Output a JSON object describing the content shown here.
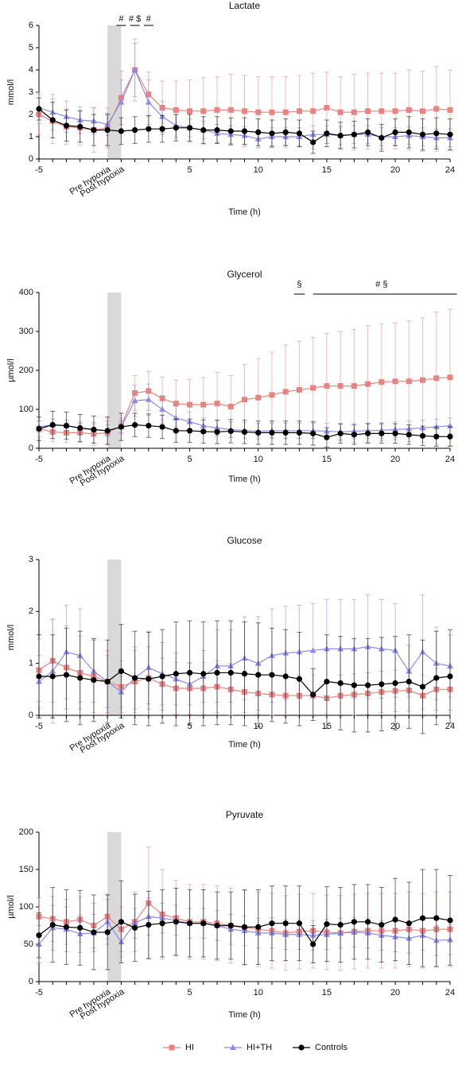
{
  "chart_data": [
    {
      "type": "line",
      "title": "Lactate",
      "x_label": "Time (h)",
      "y_label": "mmol/l",
      "categories": [
        "-5",
        null,
        null,
        null,
        null,
        "Pre hypoxia",
        "Post hypoxia",
        null,
        null,
        null,
        null,
        "5",
        null,
        null,
        null,
        null,
        "10",
        null,
        null,
        null,
        null,
        "15",
        null,
        null,
        null,
        null,
        "20",
        null,
        null,
        null,
        "24"
      ],
      "ylim": [
        0,
        6
      ],
      "yticks": [
        0,
        1,
        2,
        3,
        4,
        5,
        6
      ],
      "annotations": [
        "#",
        "# $",
        "#"
      ],
      "series": [
        {
          "name": "HI",
          "color": "#e8837f",
          "marker": "square",
          "values": [
            2.0,
            1.7,
            1.45,
            1.4,
            1.3,
            1.4,
            2.75,
            4.0,
            2.9,
            2.3,
            2.2,
            2.15,
            2.15,
            2.2,
            2.2,
            2.15,
            2.1,
            2.1,
            2.1,
            2.15,
            2.15,
            2.3,
            2.1,
            2.1,
            2.15,
            2.15,
            2.15,
            2.2,
            2.15,
            2.25,
            2.2
          ],
          "errors": [
            0.9,
            1.0,
            0.8,
            0.8,
            1.0,
            0.9,
            1.2,
            1.2,
            1.0,
            1.2,
            1.3,
            1.4,
            1.5,
            1.5,
            1.6,
            1.6,
            1.6,
            1.6,
            1.6,
            1.6,
            1.7,
            1.6,
            1.6,
            1.7,
            1.7,
            1.7,
            1.7,
            1.8,
            1.8,
            1.9,
            1.8
          ]
        },
        {
          "name": "HI+TH",
          "color": "#8c8ce8",
          "marker": "triangle",
          "values": [
            2.3,
            2.1,
            1.9,
            1.75,
            1.7,
            1.55,
            2.55,
            4.0,
            2.55,
            1.9,
            1.5,
            1.4,
            1.3,
            1.15,
            1.1,
            1.05,
            0.9,
            1.0,
            1.0,
            1.0,
            1.1,
            1.1,
            1.05,
            1.1,
            1.1,
            1.0,
            1.0,
            1.05,
            1.0,
            0.95,
            0.95
          ],
          "errors": [
            0.7,
            0.8,
            0.7,
            0.6,
            0.6,
            0.5,
            1.0,
            1.4,
            1.0,
            0.7,
            0.5,
            0.4,
            0.4,
            0.4,
            0.4,
            0.4,
            0.4,
            0.4,
            0.4,
            0.4,
            0.4,
            0.4,
            0.4,
            0.4,
            0.4,
            0.4,
            0.4,
            0.4,
            0.4,
            0.4,
            0.4
          ]
        },
        {
          "name": "Controls",
          "color": "#000000",
          "marker": "circle",
          "values": [
            2.25,
            1.75,
            1.5,
            1.45,
            1.3,
            1.3,
            1.25,
            1.3,
            1.35,
            1.35,
            1.4,
            1.4,
            1.3,
            1.3,
            1.25,
            1.25,
            1.2,
            1.15,
            1.2,
            1.15,
            0.75,
            1.15,
            1.05,
            1.1,
            1.2,
            0.95,
            1.2,
            1.2,
            1.1,
            1.15,
            1.1
          ],
          "errors": [
            0.5,
            0.8,
            0.7,
            0.7,
            0.7,
            0.7,
            0.6,
            0.6,
            0.6,
            0.6,
            0.6,
            0.6,
            0.6,
            0.6,
            0.6,
            0.6,
            0.6,
            0.6,
            0.6,
            0.6,
            0.5,
            0.6,
            0.6,
            0.6,
            0.6,
            0.6,
            0.6,
            0.7,
            0.7,
            0.7,
            0.7
          ]
        }
      ]
    },
    {
      "type": "line",
      "title": "Glycerol",
      "x_label": "Time (h)",
      "y_label": "µmol/l",
      "categories": [
        "-5",
        null,
        null,
        null,
        null,
        "Pre hypoxia",
        "Post hypoxia",
        null,
        null,
        null,
        null,
        "5",
        null,
        null,
        null,
        null,
        "10",
        null,
        null,
        null,
        null,
        "15",
        null,
        null,
        null,
        null,
        "20",
        null,
        null,
        null,
        "24"
      ],
      "ylim": [
        0,
        400
      ],
      "yticks": [
        0,
        100,
        200,
        300,
        400
      ],
      "annotations": [
        "§",
        "# §"
      ],
      "series": [
        {
          "name": "HI",
          "color": "#e8837f",
          "marker": "square",
          "values": [
            50,
            42,
            40,
            40,
            37,
            40,
            57,
            142,
            147,
            128,
            115,
            112,
            112,
            115,
            107,
            125,
            130,
            137,
            145,
            150,
            155,
            160,
            160,
            160,
            165,
            170,
            172,
            172,
            175,
            180,
            182
          ],
          "errors": [
            20,
            25,
            25,
            25,
            30,
            30,
            20,
            45,
            50,
            55,
            60,
            65,
            70,
            80,
            80,
            90,
            100,
            110,
            120,
            125,
            130,
            135,
            140,
            145,
            150,
            150,
            150,
            155,
            160,
            170,
            175
          ]
        },
        {
          "name": "HI+TH",
          "color": "#8c8ce8",
          "marker": "triangle",
          "values": [
            55,
            60,
            58,
            52,
            48,
            45,
            55,
            122,
            125,
            100,
            78,
            68,
            58,
            52,
            48,
            46,
            44,
            45,
            45,
            45,
            45,
            44,
            42,
            44,
            45,
            46,
            48,
            50,
            52,
            55,
            58
          ],
          "errors": [
            15,
            15,
            15,
            15,
            15,
            15,
            15,
            40,
            40,
            35,
            30,
            25,
            20,
            20,
            20,
            20,
            20,
            20,
            20,
            20,
            20,
            20,
            20,
            20,
            20,
            20,
            20,
            20,
            20,
            20,
            20
          ]
        },
        {
          "name": "Controls",
          "color": "#000000",
          "marker": "circle",
          "values": [
            50,
            60,
            58,
            52,
            48,
            45,
            55,
            60,
            58,
            55,
            45,
            45,
            43,
            42,
            44,
            42,
            40,
            40,
            40,
            40,
            38,
            28,
            38,
            35,
            38,
            38,
            38,
            35,
            32,
            30,
            30
          ],
          "errors": [
            30,
            35,
            35,
            35,
            35,
            35,
            35,
            30,
            30,
            30,
            30,
            30,
            30,
            30,
            30,
            30,
            30,
            30,
            30,
            30,
            30,
            25,
            25,
            25,
            25,
            25,
            25,
            25,
            25,
            25,
            25
          ]
        }
      ]
    },
    {
      "type": "line",
      "title": "Glucose",
      "x_label": "Time (h)",
      "y_label": "mmol/l",
      "categories": [
        "-5",
        null,
        null,
        null,
        null,
        "Pre hypoxia",
        "Post hypoxia",
        null,
        null,
        null,
        null,
        "5",
        null,
        null,
        null,
        null,
        "10",
        null,
        null,
        null,
        null,
        "15",
        null,
        null,
        null,
        null,
        "20",
        null,
        null,
        null,
        "24"
      ],
      "ylim": [
        0,
        3
      ],
      "yticks": [
        0,
        1,
        2,
        3
      ],
      "series": [
        {
          "name": "HI",
          "color": "#e8837f",
          "marker": "square",
          "values": [
            0.87,
            1.05,
            0.92,
            0.82,
            0.75,
            0.65,
            0.55,
            0.65,
            0.72,
            0.6,
            0.52,
            0.52,
            0.52,
            0.55,
            0.5,
            0.45,
            0.42,
            0.4,
            0.38,
            0.38,
            0.38,
            0.33,
            0.38,
            0.4,
            0.42,
            0.45,
            0.47,
            0.48,
            0.38,
            0.5,
            0.5
          ],
          "errors": [
            0.6,
            0.8,
            0.8,
            0.7,
            0.7,
            0.6,
            0.5,
            0.6,
            0.6,
            0.5,
            0.5,
            0.5,
            0.5,
            0.5,
            0.5,
            0.4,
            0.4,
            0.4,
            0.4,
            0.4,
            0.4,
            0.3,
            0.4,
            0.4,
            0.4,
            0.4,
            0.4,
            0.4,
            0.4,
            0.4,
            0.4
          ]
        },
        {
          "name": "HI+TH",
          "color": "#8c8ce8",
          "marker": "triangle",
          "values": [
            0.65,
            0.85,
            1.22,
            1.15,
            0.85,
            0.65,
            0.45,
            0.72,
            0.92,
            0.8,
            0.7,
            0.6,
            0.75,
            0.95,
            0.95,
            1.1,
            1.0,
            1.15,
            1.2,
            1.22,
            1.25,
            1.28,
            1.28,
            1.28,
            1.32,
            1.28,
            1.25,
            0.85,
            1.22,
            1.0,
            0.95
          ],
          "errors": [
            0.5,
            1.0,
            0.9,
            0.9,
            0.6,
            0.5,
            0.3,
            0.6,
            0.7,
            0.6,
            0.5,
            0.4,
            0.5,
            0.7,
            0.7,
            0.8,
            0.9,
            0.9,
            0.9,
            0.9,
            0.9,
            0.95,
            0.95,
            0.95,
            1.0,
            0.95,
            0.9,
            0.5,
            1.1,
            0.7,
            0.6
          ]
        },
        {
          "name": "Controls",
          "color": "#000000",
          "marker": "circle",
          "values": [
            0.75,
            0.75,
            0.78,
            0.72,
            0.68,
            0.65,
            0.85,
            0.72,
            0.7,
            0.75,
            0.8,
            0.82,
            0.8,
            0.82,
            0.82,
            0.8,
            0.78,
            0.78,
            0.75,
            0.7,
            0.4,
            0.65,
            0.62,
            0.58,
            0.58,
            0.6,
            0.62,
            0.65,
            0.55,
            0.72,
            0.75
          ],
          "errors": [
            0.8,
            0.8,
            0.9,
            0.9,
            0.8,
            0.8,
            0.9,
            0.9,
            0.9,
            0.9,
            1.0,
            1.0,
            1.0,
            1.0,
            1.0,
            1.0,
            1.0,
            0.9,
            0.9,
            0.9,
            0.5,
            0.9,
            0.9,
            0.9,
            0.9,
            0.9,
            0.9,
            0.9,
            0.9,
            0.9,
            0.9
          ]
        }
      ]
    },
    {
      "type": "line",
      "title": "Pyruvate",
      "x_label": "Time (h)",
      "y_label": "µmol/l",
      "categories": [
        "-5",
        null,
        null,
        null,
        null,
        "Pre hypoxia",
        "Post hypoxia",
        null,
        null,
        null,
        null,
        "5",
        null,
        null,
        null,
        null,
        "10",
        null,
        null,
        null,
        null,
        "15",
        null,
        null,
        null,
        null,
        "20",
        null,
        null,
        null,
        "24"
      ],
      "ylim": [
        0,
        200
      ],
      "yticks": [
        0,
        50,
        100,
        150,
        200
      ],
      "series": [
        {
          "name": "HI",
          "color": "#e8837f",
          "marker": "square",
          "values": [
            87,
            84,
            80,
            83,
            75,
            87,
            70,
            80,
            105,
            90,
            85,
            80,
            80,
            78,
            75,
            72,
            70,
            68,
            65,
            67,
            68,
            66,
            65,
            67,
            68,
            68,
            68,
            70,
            68,
            70,
            70
          ],
          "errors": [
            25,
            30,
            30,
            30,
            30,
            30,
            30,
            40,
            75,
            60,
            50,
            50,
            50,
            50,
            50,
            50,
            50,
            50,
            50,
            50,
            50,
            50,
            50,
            50,
            50,
            50,
            50,
            50,
            50,
            50,
            50
          ]
        },
        {
          "name": "HI+TH",
          "color": "#8c8ce8",
          "marker": "triangle",
          "values": [
            50,
            72,
            70,
            64,
            65,
            80,
            53,
            78,
            87,
            85,
            82,
            78,
            78,
            75,
            70,
            68,
            65,
            65,
            63,
            63,
            62,
            63,
            65,
            66,
            65,
            62,
            60,
            58,
            62,
            55,
            56
          ],
          "errors": [
            25,
            30,
            30,
            25,
            25,
            30,
            20,
            20,
            25,
            20,
            20,
            20,
            20,
            20,
            20,
            20,
            20,
            20,
            20,
            20,
            20,
            20,
            20,
            20,
            20,
            20,
            20,
            20,
            20,
            20,
            20
          ]
        },
        {
          "name": "Controls",
          "color": "#000000",
          "marker": "circle",
          "values": [
            62,
            76,
            73,
            72,
            66,
            66,
            80,
            72,
            76,
            78,
            80,
            78,
            78,
            75,
            75,
            73,
            73,
            78,
            78,
            78,
            50,
            77,
            76,
            80,
            80,
            76,
            83,
            78,
            85,
            85,
            82
          ],
          "errors": [
            30,
            50,
            50,
            50,
            50,
            50,
            55,
            45,
            45,
            45,
            45,
            45,
            45,
            45,
            45,
            50,
            50,
            50,
            50,
            50,
            25,
            50,
            50,
            50,
            50,
            50,
            55,
            55,
            65,
            65,
            60
          ]
        }
      ]
    }
  ]
}
